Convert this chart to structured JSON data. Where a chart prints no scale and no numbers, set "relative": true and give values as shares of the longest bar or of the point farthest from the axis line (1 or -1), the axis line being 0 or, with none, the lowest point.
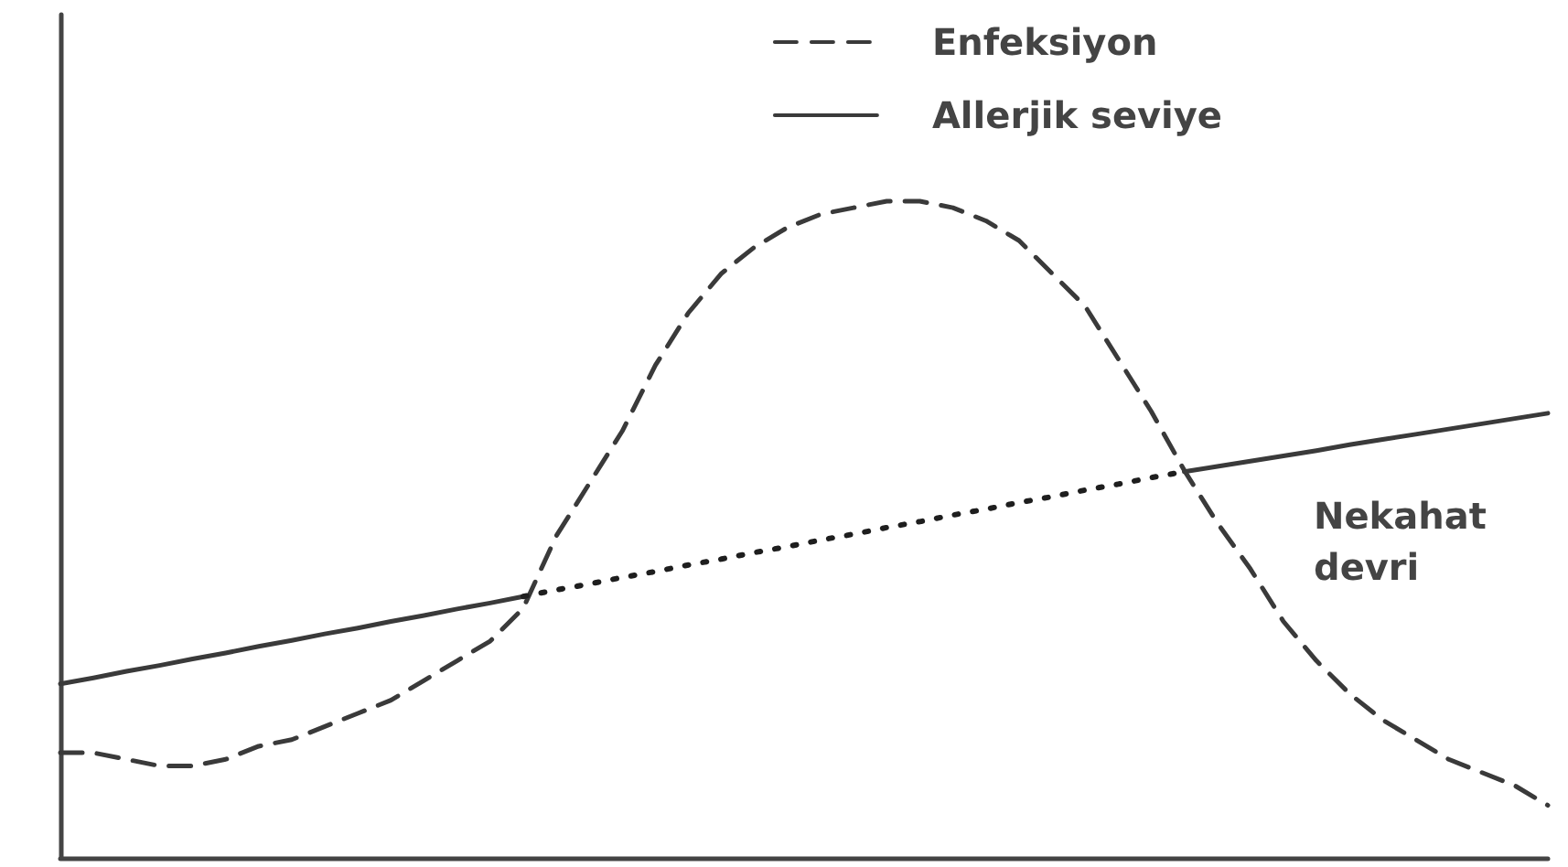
{
  "chart_data": {
    "type": "line",
    "relative": true,
    "tick_labels": false,
    "legend": "top right",
    "categories": [
      null,
      null,
      null,
      null,
      null,
      null,
      null,
      null,
      null,
      null,
      null,
      null,
      null,
      null,
      null,
      null,
      null,
      null,
      null,
      null,
      null,
      null,
      null,
      null,
      null,
      null,
      null,
      null,
      null,
      null,
      null,
      null,
      null,
      null,
      null,
      null,
      null,
      null,
      null,
      null,
      null,
      null,
      null,
      null,
      null,
      null
    ],
    "series": [
      {
        "name": "Enfeksiyon",
        "color": "#3a3a3a",
        "line_style": "dashed",
        "values": [
          0.16,
          0.16,
          0.15,
          0.14,
          0.14,
          0.15,
          0.17,
          0.18,
          0.2,
          0.22,
          0.24,
          0.27,
          0.3,
          0.33,
          0.38,
          0.49,
          0.57,
          0.65,
          0.75,
          0.83,
          0.89,
          0.93,
          0.96,
          0.98,
          0.99,
          1,
          1,
          0.99,
          0.97,
          0.94,
          0.89,
          0.84,
          0.76,
          0.68,
          0.59,
          0.51,
          0.44,
          0.36,
          0.3,
          0.25,
          0.21,
          0.18,
          0.15,
          0.13,
          0.11,
          0.08
        ]
      },
      {
        "name": "Allerjik seviye",
        "color": "#3a3a3a",
        "line_style": "solid",
        "values": [
          0.265,
          0.274,
          0.284,
          0.293,
          0.303,
          0.312,
          0.322,
          0.331,
          0.341,
          0.35,
          0.36,
          0.369,
          0.379,
          0.388,
          0.398,
          null,
          null,
          null,
          null,
          null,
          null,
          null,
          null,
          null,
          null,
          null,
          null,
          null,
          null,
          null,
          null,
          null,
          null,
          null,
          0.588,
          0.596,
          0.604,
          0.612,
          0.62,
          0.629,
          0.637,
          0.645,
          0.653,
          0.661,
          0.669,
          0.677
        ]
      },
      {
        "color": "#1e1e1e",
        "line_style": "dotted",
        "values": [
          null,
          null,
          null,
          null,
          null,
          null,
          null,
          null,
          null,
          null,
          null,
          null,
          null,
          null,
          0.398,
          0.408,
          0.417,
          0.427,
          0.436,
          0.446,
          0.455,
          0.465,
          0.474,
          0.484,
          0.493,
          0.503,
          0.512,
          0.522,
          0.531,
          0.541,
          0.55,
          0.56,
          0.569,
          0.579,
          0.588,
          null,
          null,
          null,
          null,
          null,
          null,
          null,
          null,
          null,
          null,
          null
        ]
      }
    ],
    "annotations": [
      "Nekahat devri"
    ]
  }
}
